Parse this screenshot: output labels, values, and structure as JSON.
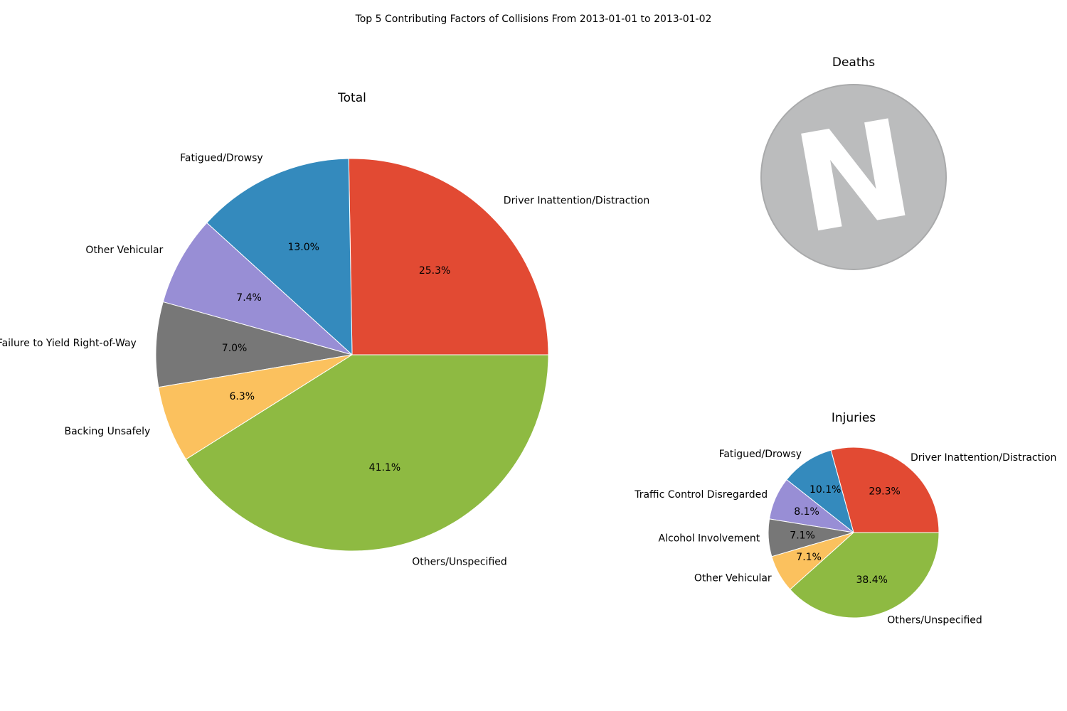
{
  "figure": {
    "suptitle": "Top 5 Contributing Factors of Collisions From 2013-01-01 to 2013-01-02"
  },
  "colors": {
    "red": "#E24A33",
    "blue": "#348ABD",
    "purple": "#988ED5",
    "gray": "#777777",
    "yellow": "#FBC15E",
    "green": "#8EBA42"
  },
  "chart_data": [
    {
      "id": "total",
      "type": "pie",
      "title": "Total",
      "start_angle": 0,
      "direction": "counterclockwise",
      "slices": [
        {
          "label": "Driver Inattention/Distraction",
          "value": 25.3,
          "pct_label": "25.3%",
          "color": "#E24A33"
        },
        {
          "label": "Fatigued/Drowsy",
          "value": 13.0,
          "pct_label": "13.0%",
          "color": "#348ABD"
        },
        {
          "label": "Other Vehicular",
          "value": 7.4,
          "pct_label": "7.4%",
          "color": "#988ED5"
        },
        {
          "label": "Failure to Yield Right-of-Way",
          "value": 7.0,
          "pct_label": "7.0%",
          "color": "#777777"
        },
        {
          "label": "Backing Unsafely",
          "value": 6.3,
          "pct_label": "6.3%",
          "color": "#FBC15E"
        },
        {
          "label": "Others/Unspecified",
          "value": 41.1,
          "pct_label": "41.1%",
          "color": "#8EBA42"
        }
      ]
    },
    {
      "id": "deaths",
      "type": "pie",
      "title": "Deaths",
      "slices": [],
      "placeholder_icon": "no-data-n-icon",
      "placeholder_text": "N"
    },
    {
      "id": "injuries",
      "type": "pie",
      "title": "Injuries",
      "start_angle": 0,
      "direction": "counterclockwise",
      "slices": [
        {
          "label": "Driver Inattention/Distraction",
          "value": 29.3,
          "pct_label": "29.3%",
          "color": "#E24A33"
        },
        {
          "label": "Fatigued/Drowsy",
          "value": 10.1,
          "pct_label": "10.1%",
          "color": "#348ABD"
        },
        {
          "label": "Traffic Control Disregarded",
          "value": 8.1,
          "pct_label": "8.1%",
          "color": "#988ED5"
        },
        {
          "label": "Alcohol Involvement",
          "value": 7.1,
          "pct_label": "7.1%",
          "color": "#777777"
        },
        {
          "label": "Other Vehicular",
          "value": 7.1,
          "pct_label": "7.1%",
          "color": "#FBC15E"
        },
        {
          "label": "Others/Unspecified",
          "value": 38.4,
          "pct_label": "38.4%",
          "color": "#8EBA42"
        }
      ]
    }
  ]
}
